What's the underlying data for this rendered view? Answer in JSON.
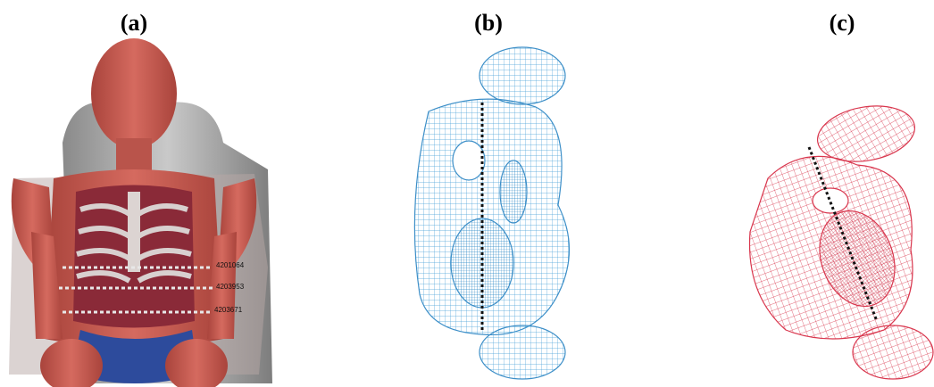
{
  "panels": [
    {
      "label": "(a)",
      "node_labels": [
        "4201064",
        "4203953",
        "4203671"
      ]
    },
    {
      "label": "(b)"
    },
    {
      "label": "(c)"
    }
  ]
}
